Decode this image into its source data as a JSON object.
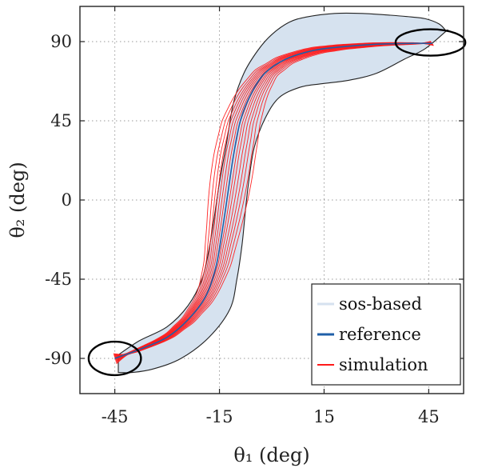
{
  "chart_data": {
    "type": "line",
    "xlabel": "θ₁ (deg)",
    "ylabel": "θ₂ (deg)",
    "xlim": [
      -55,
      55
    ],
    "ylim": [
      -110,
      110
    ],
    "xticks": [
      -45,
      -15,
      15,
      45
    ],
    "yticks": [
      -90,
      -45,
      0,
      45,
      90
    ],
    "xtick_labels": [
      "-45",
      "-15",
      "15",
      "45"
    ],
    "ytick_labels": [
      "-90",
      "-45",
      "0",
      "45",
      "90"
    ],
    "grid": true,
    "legend_position": "bottom-right",
    "colors": {
      "region_fill": "#d6e2ef",
      "region_edge": "#222222",
      "reference": "#1f5fa8",
      "simulation": "#ff1a1a",
      "ellipse": "#000000"
    },
    "series": [
      {
        "name": "sos-based",
        "kind": "region",
        "upper": {
          "x": [
            -44,
            -38,
            -30,
            -24,
            -20,
            -18,
            -16.5,
            -15,
            -13,
            -11,
            -8,
            -4,
            0,
            5,
            10,
            18,
            26,
            34,
            40,
            44,
            48,
            50
          ],
          "y": [
            -88,
            -80,
            -72,
            -60,
            -45,
            -28,
            -10,
            10,
            32,
            55,
            72,
            85,
            94,
            101,
            104,
            106,
            106,
            105,
            104,
            103,
            100,
            96
          ]
        },
        "lower": {
          "x": [
            -44,
            -40,
            -34,
            -26,
            -18,
            -12,
            -10,
            -8.5,
            -7.5,
            -6.5,
            -5,
            -2,
            2,
            8,
            14,
            22,
            30,
            38,
            44,
            50
          ],
          "y": [
            -98,
            -98,
            -96,
            -90,
            -78,
            -62,
            -45,
            -25,
            -5,
            12,
            30,
            46,
            58,
            64,
            66,
            68,
            72,
            80,
            86,
            96
          ]
        }
      },
      {
        "name": "reference",
        "x": [
          -45,
          -38,
          -30,
          -24,
          -19,
          -16,
          -14,
          -12.5,
          -11,
          -9,
          -6,
          -2,
          4,
          12,
          20,
          30,
          40,
          46
        ],
        "y": [
          -90,
          -85,
          -78,
          -68,
          -55,
          -38,
          -15,
          5,
          25,
          45,
          60,
          72,
          80,
          85,
          87,
          88.5,
          89,
          89
        ]
      },
      {
        "name": "simulation",
        "offsets": [
          -4.5,
          -3.7,
          -3,
          -2.4,
          -1.8,
          -1.2,
          -0.6,
          0,
          0.6,
          1.2,
          1.9,
          2.6,
          3.3,
          4.1,
          5
        ]
      }
    ],
    "ellipses": [
      {
        "cx": -45,
        "cy": -90,
        "rx": 7.5,
        "ry": 9.5
      },
      {
        "cx": 45.5,
        "cy": 89.5,
        "rx": 10,
        "ry": 7.5
      }
    ],
    "legend": [
      {
        "label": "sos-based",
        "series": "sos-based"
      },
      {
        "label": "reference",
        "series": "reference"
      },
      {
        "label": "simulation",
        "series": "simulation"
      }
    ]
  }
}
